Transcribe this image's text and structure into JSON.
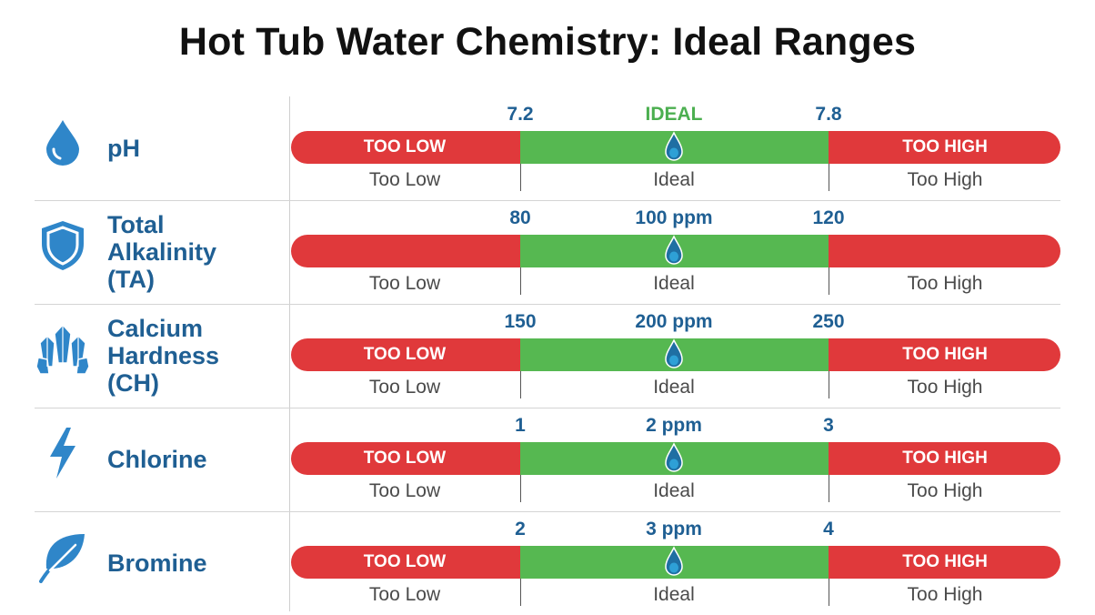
{
  "title": "Hot Tub Water Chemistry: Ideal Ranges",
  "colors": {
    "too_low": "#e0393b",
    "ideal": "#56b851",
    "too_high": "#e0393b",
    "param_text": "#1f5f93",
    "ideal_header": "#4caf50",
    "icon": "#2f86c9"
  },
  "chart_data": {
    "type": "range-bar",
    "zones": [
      "Too Low",
      "Ideal",
      "Too High"
    ],
    "parameters": [
      {
        "name_lines": [
          "pH"
        ],
        "icon": "water-drop-icon",
        "low_value": "7.2",
        "mid_value": "IDEAL",
        "high_value": "7.8",
        "mid_is_header": true,
        "bar_labels": {
          "low": "TOO LOW",
          "high": "TOO HIGH"
        },
        "zone_labels": [
          "Too Low",
          "Ideal",
          "Too High"
        ]
      },
      {
        "name_lines": [
          "Total",
          "Alkalinity",
          "(TA)"
        ],
        "icon": "shield-icon",
        "low_value": "80",
        "mid_value": "100 ppm",
        "high_value": "120",
        "mid_is_header": false,
        "bar_labels": {
          "low": "",
          "high": ""
        },
        "zone_labels": [
          "Too Low",
          "Ideal",
          "Too High"
        ]
      },
      {
        "name_lines": [
          "Calcium",
          "Hardness",
          "(CH)"
        ],
        "icon": "crystal-icon",
        "low_value": "150",
        "mid_value": "200 ppm",
        "high_value": "250",
        "mid_is_header": false,
        "bar_labels": {
          "low": "TOO LOW",
          "high": "TOO HIGH"
        },
        "zone_labels": [
          "Too Low",
          "Ideal",
          "Too High"
        ]
      },
      {
        "name_lines": [
          "Chlorine"
        ],
        "icon": "lightning-icon",
        "low_value": "1",
        "mid_value": "2 ppm",
        "high_value": "3",
        "mid_is_header": false,
        "bar_labels": {
          "low": "TOO LOW",
          "high": "TOO HIGH"
        },
        "zone_labels": [
          "Too Low",
          "Ideal",
          "Too High"
        ]
      },
      {
        "name_lines": [
          "Bromine"
        ],
        "icon": "leaf-icon",
        "low_value": "2",
        "mid_value": "3 ppm",
        "high_value": "4",
        "mid_is_header": false,
        "bar_labels": {
          "low": "TOO LOW",
          "high": "TOO HIGH"
        },
        "zone_labels": [
          "Too Low",
          "Ideal",
          "Too High"
        ]
      }
    ]
  }
}
